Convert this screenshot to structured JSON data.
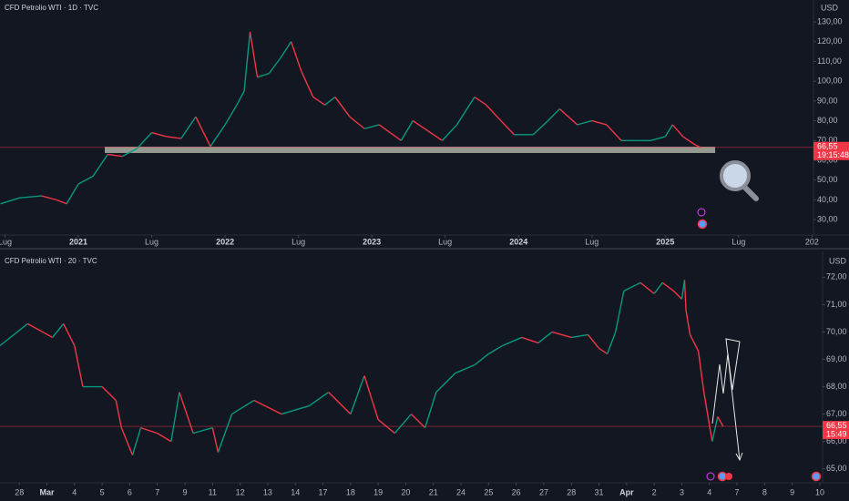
{
  "chart_data": [
    {
      "type": "line",
      "title": "CFD Petrolio WTI · 1D · TVC",
      "currency": "USD",
      "up_color": "#089981",
      "down_color": "#f23645",
      "x": [
        2020.47,
        2020.6,
        2020.75,
        2020.85,
        2020.92,
        2021.0,
        2021.1,
        2021.2,
        2021.3,
        2021.4,
        2021.5,
        2021.6,
        2021.7,
        2021.8,
        2021.9,
        2022.0,
        2022.08,
        2022.13,
        2022.17,
        2022.22,
        2022.3,
        2022.38,
        2022.45,
        2022.52,
        2022.6,
        2022.68,
        2022.75,
        2022.85,
        2022.95,
        2023.05,
        2023.2,
        2023.28,
        2023.38,
        2023.48,
        2023.58,
        2023.7,
        2023.78,
        2023.88,
        2023.97,
        2024.1,
        2024.2,
        2024.28,
        2024.4,
        2024.5,
        2024.6,
        2024.7,
        2024.8,
        2024.9,
        2025.0,
        2025.05,
        2025.12,
        2025.2,
        2025.24
      ],
      "values": [
        38,
        41,
        42,
        40,
        38,
        48,
        52,
        63,
        62,
        66,
        74,
        72,
        71,
        82,
        67,
        78,
        88,
        95,
        125,
        102,
        104,
        112,
        120,
        105,
        92,
        88,
        92,
        82,
        76,
        78,
        70,
        80,
        75,
        70,
        78,
        92,
        88,
        80,
        73,
        73,
        80,
        86,
        78,
        80,
        78,
        70,
        70,
        70,
        72,
        78,
        72,
        68,
        66.55
      ],
      "xlim": [
        2020.466,
        2026.01
      ],
      "ylim": [
        22.2,
        141.1
      ],
      "xticks": [
        {
          "value": 2020.5,
          "label": "Lug"
        },
        2021,
        {
          "value": 2021.5,
          "label": "Lug"
        },
        2022,
        {
          "value": 2022.5,
          "label": "Lug"
        },
        2023,
        {
          "value": 2023.5,
          "label": "Lug"
        },
        2024,
        {
          "value": 2024.5,
          "label": "Lug"
        },
        2025,
        {
          "value": 2025.5,
          "label": "Lug"
        },
        {
          "value": 2026,
          "label": "202"
        }
      ],
      "yticks": [
        {
          "value": 30,
          "label": "30,00"
        },
        {
          "value": 40,
          "label": "40,00"
        },
        {
          "value": 50,
          "label": "50,00"
        },
        {
          "value": 60,
          "label": "60,00"
        },
        {
          "value": 70,
          "label": "70,00"
        },
        {
          "value": 80,
          "label": "80,00"
        },
        {
          "value": 90,
          "label": "90,00"
        },
        {
          "value": 100,
          "label": "100,00"
        },
        {
          "value": 110,
          "label": "110,00"
        },
        {
          "value": 120,
          "label": "120,00"
        },
        {
          "value": 130,
          "label": "130,00"
        }
      ],
      "last_price": {
        "value": 66.55,
        "label": "66,55"
      },
      "countdown": "19:15:48",
      "zone": {
        "xlim": [
          2021.18,
          2025.34
        ],
        "ylim": [
          63.7,
          66.9
        ],
        "color": "#a3a89c"
      }
    },
    {
      "type": "line",
      "title": "CFD Petrolio WTI · 20 · TVC",
      "currency": "USD",
      "up_color": "#089981",
      "down_color": "#f23645",
      "x": [
        -0.7,
        0.3,
        1.2,
        1.6,
        2.0,
        2.3,
        3.0,
        3.5,
        3.7,
        4.1,
        4.4,
        5.0,
        5.5,
        5.8,
        6.3,
        7.0,
        7.2,
        7.7,
        8.5,
        9.5,
        10.5,
        11.2,
        12.0,
        12.5,
        13.0,
        13.6,
        14.2,
        14.7,
        15.1,
        15.8,
        16.5,
        17.0,
        17.5,
        18.2,
        18.8,
        19.3,
        20.0,
        20.6,
        21.0,
        21.3,
        21.6,
        21.9,
        22.5,
        23.0,
        23.3,
        23.7,
        24.0,
        24.1,
        24.15,
        24.3,
        24.6,
        24.8,
        25.0,
        25.1,
        25.3,
        25.5
      ],
      "values": [
        69.5,
        70.3,
        69.8,
        70.3,
        69.5,
        68,
        68,
        67.5,
        66.5,
        65.5,
        66.5,
        66.3,
        66,
        67.8,
        66.3,
        66.5,
        65.6,
        67,
        67.5,
        67,
        67.3,
        67.8,
        67,
        68.4,
        66.8,
        66.3,
        67,
        66.5,
        67.8,
        68.5,
        68.8,
        69.2,
        69.5,
        69.8,
        69.6,
        70,
        69.8,
        69.9,
        69.4,
        69.2,
        70,
        71.5,
        71.8,
        71.4,
        71.8,
        71.5,
        71.2,
        71.9,
        70.8,
        69.9,
        69.3,
        67.8,
        66.6,
        66,
        66.9,
        66.55
      ],
      "xlim": [
        -0.7,
        29.1
      ],
      "ylim": [
        64.49,
        72.91
      ],
      "xticks": [
        {
          "value": 0,
          "label": "28"
        },
        {
          "value": 1,
          "label": "Mar"
        },
        {
          "value": 2,
          "label": "4"
        },
        {
          "value": 3,
          "label": "5"
        },
        {
          "value": 4,
          "label": "6"
        },
        {
          "value": 5,
          "label": "7"
        },
        {
          "value": 6,
          "label": "9"
        },
        {
          "value": 7,
          "label": "11"
        },
        {
          "value": 8,
          "label": "12"
        },
        {
          "value": 9,
          "label": "13"
        },
        {
          "value": 10,
          "label": "14"
        },
        {
          "value": 11,
          "label": "17"
        },
        {
          "value": 12,
          "label": "18"
        },
        {
          "value": 13,
          "label": "19"
        },
        {
          "value": 14,
          "label": "20"
        },
        {
          "value": 15,
          "label": "21"
        },
        {
          "value": 16,
          "label": "24"
        },
        {
          "value": 17,
          "label": "25"
        },
        {
          "value": 18,
          "label": "26"
        },
        {
          "value": 19,
          "label": "27"
        },
        {
          "value": 20,
          "label": "28"
        },
        {
          "value": 21,
          "label": "31"
        },
        {
          "value": 22,
          "label": "Apr"
        },
        {
          "value": 23,
          "label": "2"
        },
        {
          "value": 24,
          "label": "3"
        },
        {
          "value": 25,
          "label": "4"
        },
        {
          "value": 26,
          "label": "7"
        },
        {
          "value": 27,
          "label": "8"
        },
        {
          "value": 28,
          "label": "9"
        },
        {
          "value": 29,
          "label": "10"
        }
      ],
      "yticks": [
        {
          "value": 65,
          "label": "65,00"
        },
        {
          "value": 66,
          "label": "66,00"
        },
        {
          "value": 67,
          "label": "67,00"
        },
        {
          "value": 68,
          "label": "68,00"
        },
        {
          "value": 69,
          "label": "69,00"
        },
        {
          "value": 70,
          "label": "70,00"
        },
        {
          "value": 71,
          "label": "71,00"
        },
        {
          "value": 72,
          "label": "72,00"
        }
      ],
      "last_price": {
        "value": 66.55,
        "label": "66,55"
      },
      "countdown": "15:49"
    }
  ]
}
